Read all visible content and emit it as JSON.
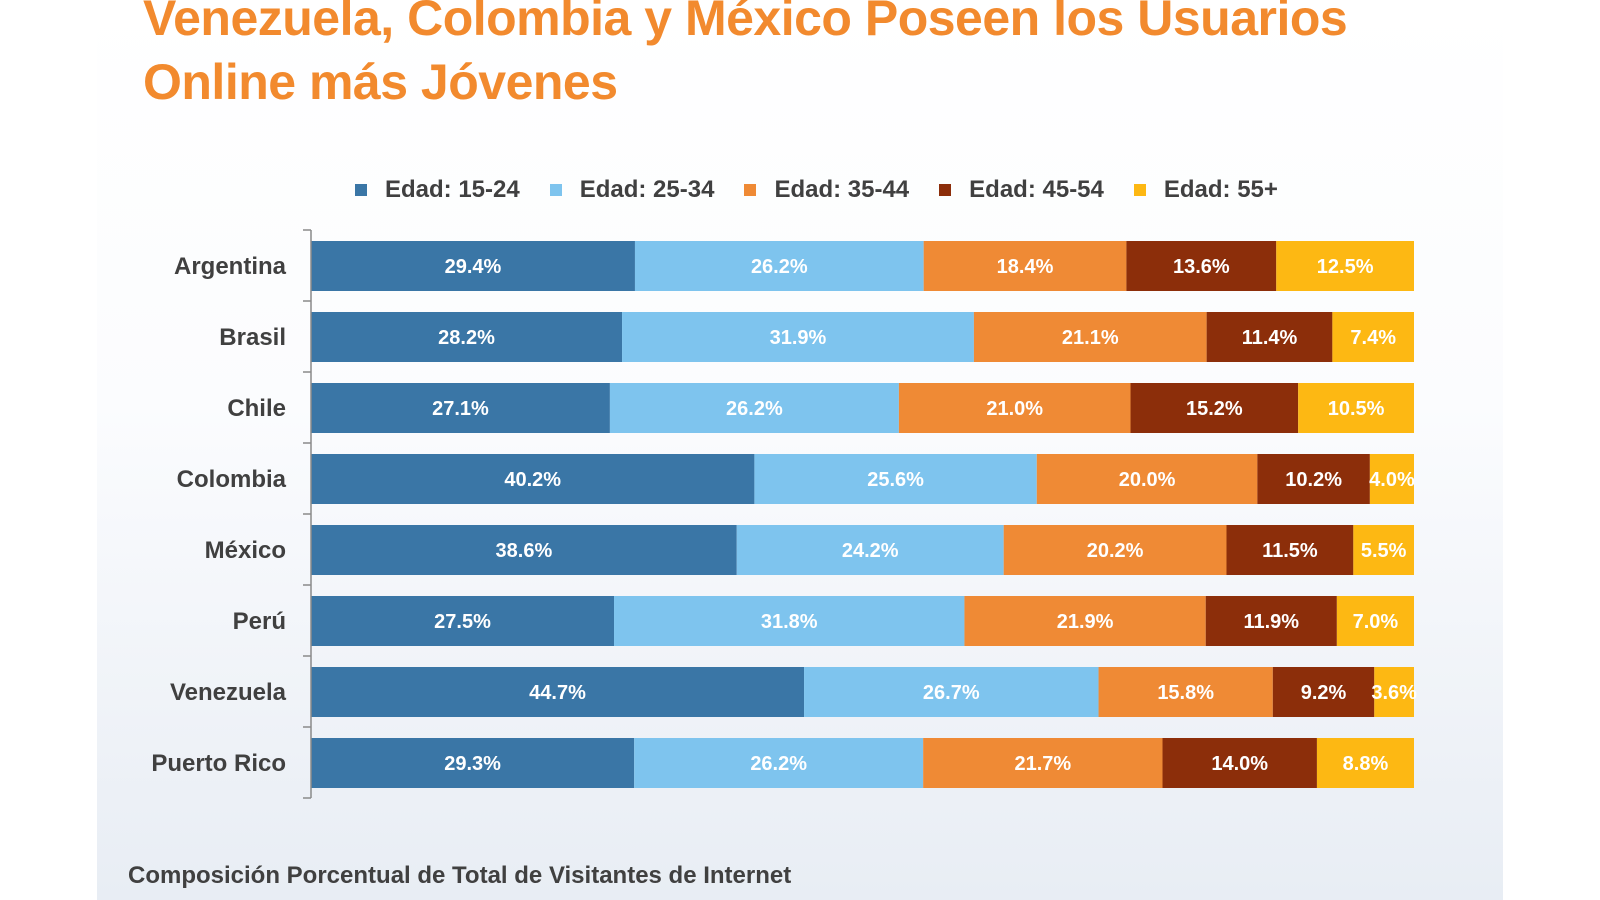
{
  "title_lines": [
    "Venezuela, Colombia y México Poseen los Usuarios",
    "Online más Jóvenes"
  ],
  "caption": "Composición Porcentual de Total de Visitantes de Internet",
  "colors": {
    "title": "#f28a2e",
    "text": "#404040",
    "series": [
      "#3a76a6",
      "#7ec4ee",
      "#ef8a35",
      "#8c2e0a",
      "#fdb813"
    ]
  },
  "chart_data": {
    "type": "bar",
    "orientation": "horizontal",
    "stacked": "100%",
    "title": "Venezuela, Colombia y México Poseen los Usuarios Online más Jóvenes",
    "xlabel": "",
    "ylabel": "",
    "legend_position": "top",
    "grid": false,
    "categories": [
      "Argentina",
      "Brasil",
      "Chile",
      "Colombia",
      "México",
      "Perú",
      "Venezuela",
      "Puerto Rico"
    ],
    "series": [
      {
        "name": "Edad: 15-24",
        "values": [
          29.4,
          28.2,
          27.1,
          40.2,
          38.6,
          27.5,
          44.7,
          29.3
        ],
        "labels": [
          "29.4%",
          "28.2%",
          "27.1%",
          "40.2%",
          "38.6%",
          "27.5%",
          "44.7%",
          "29.3%"
        ]
      },
      {
        "name": "Edad: 25-34",
        "values": [
          26.2,
          31.9,
          26.2,
          25.6,
          24.2,
          31.8,
          26.7,
          26.2
        ],
        "labels": [
          "26.2%",
          "31.9%",
          "26.2%",
          "25.6%",
          "24.2%",
          "31.8%",
          "26.7%",
          "26.2%"
        ]
      },
      {
        "name": "Edad: 35-44",
        "values": [
          18.4,
          21.1,
          21.0,
          20.0,
          20.2,
          21.9,
          15.8,
          21.7
        ],
        "labels": [
          "18.4%",
          "21.1%",
          "21.0%",
          "20.0%",
          "20.2%",
          "21.9%",
          "15.8%",
          "21.7%"
        ]
      },
      {
        "name": "Edad: 45-54",
        "values": [
          13.6,
          11.4,
          15.2,
          10.2,
          11.5,
          11.9,
          9.2,
          14.0
        ],
        "labels": [
          "13.6%",
          "11.4%",
          "15.2%",
          "10.2%",
          "11.5%",
          "11.9%",
          "9.2%",
          "14.0%"
        ]
      },
      {
        "name": "Edad: 55+",
        "values": [
          12.5,
          7.4,
          10.5,
          4.0,
          5.5,
          7.0,
          3.6,
          8.8
        ],
        "labels": [
          "12.5%",
          "7.4%",
          "10.5%",
          "4.0%",
          "5.5%",
          "7.0%",
          "3.6%",
          "8.8%"
        ]
      }
    ]
  }
}
